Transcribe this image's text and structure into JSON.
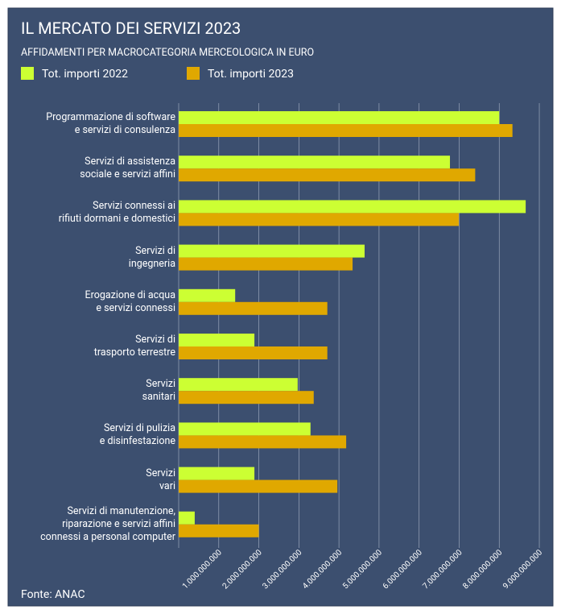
{
  "chart_data": {
    "type": "hbar",
    "title": "IL MERCATO DEI SERVIZI 2023",
    "subtitle": "AFFIDAMENTI PER MACROCATEGORIA MERCEOLOGICA IN EURO",
    "source": "Fonte: ANAC",
    "categories": [
      "Programmazione di software\ne servizi di consulenza",
      "Servizi di assistenza\nsociale e servizi affini",
      "Servizi connessi ai\nrifiuti dormani e domestici",
      "Servizi di\ningegneria",
      "Erogazione di acqua\ne servizi connessi",
      "Servizi di\ntrasporto terrestre",
      "Servizi\nsanitari",
      "Servizi di pulizia\ne disinfestazione",
      "Servizi\nvari",
      "Servizi di manutenzione,\nriparazione e servizi affini\nconnessi a personal computer"
    ],
    "series": [
      {
        "name": "Tot. importi 2022",
        "color": "#ccff33",
        "values": [
          8000000000,
          6770000000,
          8660000000,
          4640000000,
          1410000000,
          1890000000,
          2970000000,
          3290000000,
          1890000000,
          400000000
        ]
      },
      {
        "name": "Tot. importi 2023",
        "color": "#e0a800",
        "values": [
          8330000000,
          7400000000,
          6990000000,
          4340000000,
          3710000000,
          3710000000,
          3370000000,
          4180000000,
          3960000000,
          2000000000
        ]
      }
    ],
    "xlim": [
      0,
      9200000000
    ],
    "xticks": [
      {
        "value": 1000000000,
        "label": "1.000.000.000"
      },
      {
        "value": 2000000000,
        "label": "2.000.000.000"
      },
      {
        "value": 3000000000,
        "label": "3.000.000.000"
      },
      {
        "value": 4000000000,
        "label": "4.000.000.000"
      },
      {
        "value": 5000000000,
        "label": "5.000.000.000"
      },
      {
        "value": 6000000000,
        "label": "6.000.000.000"
      },
      {
        "value": 7000000000,
        "label": "7.000.000.000"
      },
      {
        "value": 8000000000,
        "label": "8.000.000.000"
      },
      {
        "value": 9000000000,
        "label": "9.000.000.000"
      }
    ],
    "grid": true
  }
}
